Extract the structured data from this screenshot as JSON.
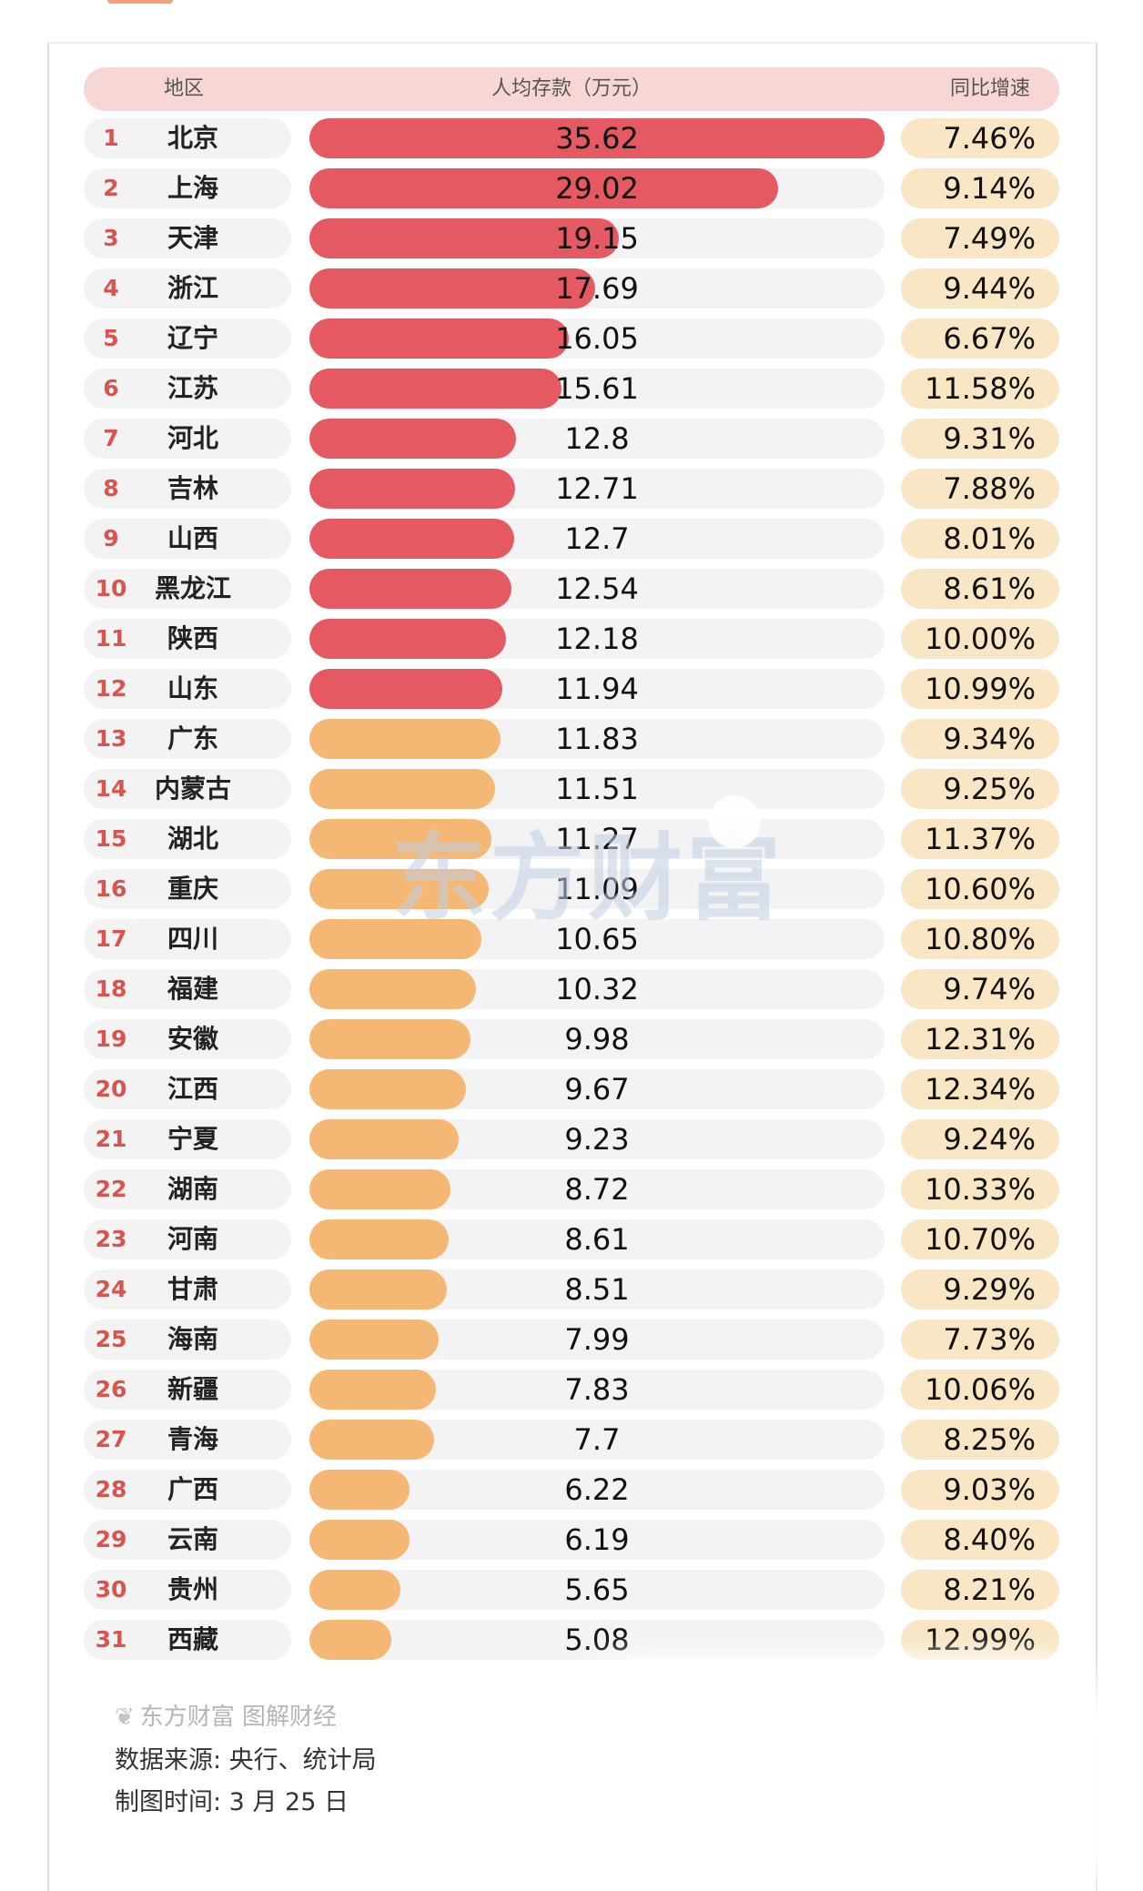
{
  "chart_data": {
    "type": "bar",
    "orientation": "horizontal",
    "columns": {
      "region": "地区",
      "value": "人均存款（万元）",
      "growth": "同比增速"
    },
    "xlim": [
      0,
      35.62
    ],
    "rows": [
      {
        "rank": "1",
        "region": "北京",
        "value": 35.62,
        "value_label": "35.62",
        "growth": "7.46%"
      },
      {
        "rank": "2",
        "region": "上海",
        "value": 29.02,
        "value_label": "29.02",
        "growth": "9.14%"
      },
      {
        "rank": "3",
        "region": "天津",
        "value": 19.15,
        "value_label": "19.15",
        "growth": "7.49%"
      },
      {
        "rank": "4",
        "region": "浙江",
        "value": 17.69,
        "value_label": "17.69",
        "growth": "9.44%"
      },
      {
        "rank": "5",
        "region": "辽宁",
        "value": 16.05,
        "value_label": "16.05",
        "growth": "6.67%"
      },
      {
        "rank": "6",
        "region": "江苏",
        "value": 15.61,
        "value_label": "15.61",
        "growth": "11.58%"
      },
      {
        "rank": "7",
        "region": "河北",
        "value": 12.8,
        "value_label": "12.8",
        "growth": "9.31%"
      },
      {
        "rank": "8",
        "region": "吉林",
        "value": 12.71,
        "value_label": "12.71",
        "growth": "7.88%"
      },
      {
        "rank": "9",
        "region": "山西",
        "value": 12.7,
        "value_label": "12.7",
        "growth": "8.01%"
      },
      {
        "rank": "10",
        "region": "黑龙江",
        "value": 12.54,
        "value_label": "12.54",
        "growth": "8.61%"
      },
      {
        "rank": "11",
        "region": "陕西",
        "value": 12.18,
        "value_label": "12.18",
        "growth": "10.00%"
      },
      {
        "rank": "12",
        "region": "山东",
        "value": 11.94,
        "value_label": "11.94",
        "growth": "10.99%"
      },
      {
        "rank": "13",
        "region": "广东",
        "value": 11.83,
        "value_label": "11.83",
        "growth": "9.34%"
      },
      {
        "rank": "14",
        "region": "内蒙古",
        "value": 11.51,
        "value_label": "11.51",
        "growth": "9.25%"
      },
      {
        "rank": "15",
        "region": "湖北",
        "value": 11.27,
        "value_label": "11.27",
        "growth": "11.37%"
      },
      {
        "rank": "16",
        "region": "重庆",
        "value": 11.09,
        "value_label": "11.09",
        "growth": "10.60%"
      },
      {
        "rank": "17",
        "region": "四川",
        "value": 10.65,
        "value_label": "10.65",
        "growth": "10.80%"
      },
      {
        "rank": "18",
        "region": "福建",
        "value": 10.32,
        "value_label": "10.32",
        "growth": "9.74%"
      },
      {
        "rank": "19",
        "region": "安徽",
        "value": 9.98,
        "value_label": "9.98",
        "growth": "12.31%"
      },
      {
        "rank": "20",
        "region": "江西",
        "value": 9.67,
        "value_label": "9.67",
        "growth": "12.34%"
      },
      {
        "rank": "21",
        "region": "宁夏",
        "value": 9.23,
        "value_label": "9.23",
        "growth": "9.24%"
      },
      {
        "rank": "22",
        "region": "湖南",
        "value": 8.72,
        "value_label": "8.72",
        "growth": "10.33%"
      },
      {
        "rank": "23",
        "region": "河南",
        "value": 8.61,
        "value_label": "8.61",
        "growth": "10.70%"
      },
      {
        "rank": "24",
        "region": "甘肃",
        "value": 8.51,
        "value_label": "8.51",
        "growth": "9.29%"
      },
      {
        "rank": "25",
        "region": "海南",
        "value": 7.99,
        "value_label": "7.99",
        "growth": "7.73%"
      },
      {
        "rank": "26",
        "region": "新疆",
        "value": 7.83,
        "value_label": "7.83",
        "growth": "10.06%"
      },
      {
        "rank": "27",
        "region": "青海",
        "value": 7.7,
        "value_label": "7.7",
        "growth": "8.25%"
      },
      {
        "rank": "28",
        "region": "广西",
        "value": 6.22,
        "value_label": "6.22",
        "growth": "9.03%"
      },
      {
        "rank": "29",
        "region": "云南",
        "value": 6.19,
        "value_label": "6.19",
        "growth": "8.40%"
      },
      {
        "rank": "30",
        "region": "贵州",
        "value": 5.65,
        "value_label": "5.65",
        "growth": "8.21%"
      },
      {
        "rank": "31",
        "region": "西藏",
        "value": 5.08,
        "value_label": "5.08",
        "growth": "12.99%"
      }
    ],
    "colors": {
      "top12": "#e55a62",
      "rest": "#f5b874",
      "track": "#f3f3f3",
      "growth_bg": "#f8e6c4",
      "rank": "#d9534f"
    },
    "grid": false,
    "legend": "none"
  },
  "watermark": "东方财富",
  "footer": {
    "brand": "东方财富 图解财经",
    "source": "数据来源: 央行、统计局",
    "time": "制图时间: 3 月 25 日"
  }
}
